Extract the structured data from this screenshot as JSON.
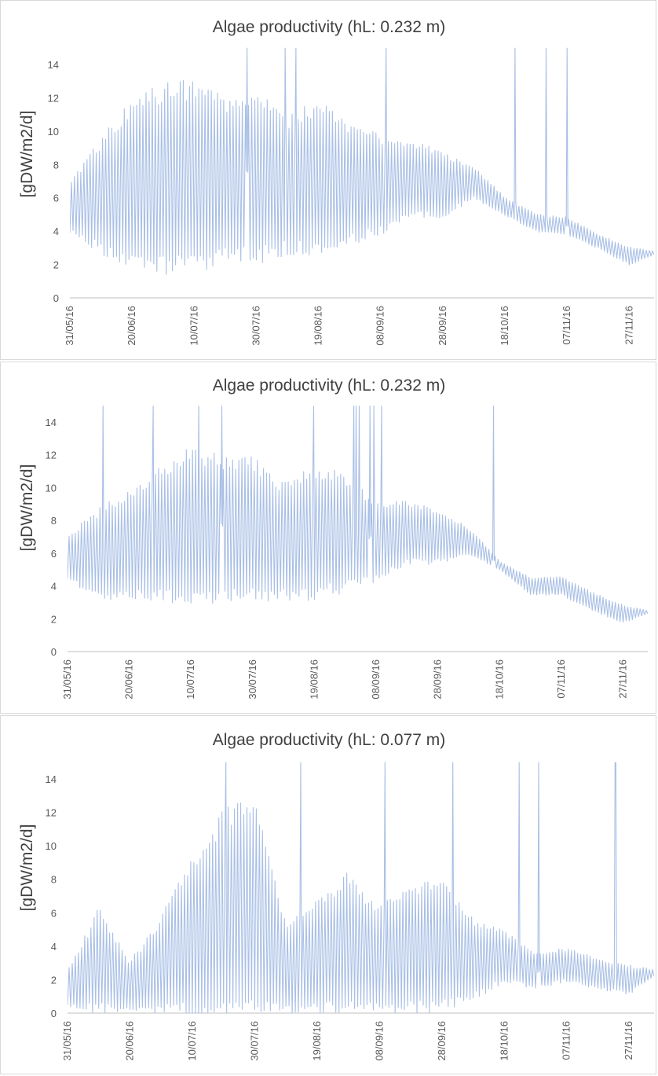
{
  "figure": {
    "line_color": "#a9bfe5",
    "axis_color": "#bfbfbf",
    "text_color": "#595959"
  },
  "chart_data": [
    {
      "type": "line",
      "title": "Algae productivity (hL: 0.232 m)",
      "xlabel": "",
      "ylabel": "[gDW/m2/d]",
      "ylim": [
        0,
        15
      ],
      "yticks": [
        "0",
        "2",
        "4",
        "6",
        "8",
        "10",
        "12",
        "14"
      ],
      "xticks": [
        "31/05/16",
        "20/06/16",
        "10/07/16",
        "30/07/16",
        "19/08/16",
        "08/09/16",
        "28/09/16",
        "18/10/16",
        "07/11/16",
        "27/11/16"
      ],
      "x_range": [
        "2016-05-31",
        "2016-12-05"
      ],
      "grid": false,
      "legend": "none",
      "envelope_every_10_days": {
        "x": [
          "31/05/16",
          "10/06/16",
          "20/06/16",
          "30/06/16",
          "10/07/16",
          "20/07/16",
          "30/07/16",
          "09/08/16",
          "19/08/16",
          "29/08/16",
          "08/09/16",
          "18/09/16",
          "28/09/16",
          "08/10/16",
          "18/10/16",
          "28/10/16",
          "07/11/16",
          "17/11/16",
          "27/11/16",
          "05/12/16"
        ],
        "upper": [
          7.0,
          9.2,
          11.5,
          12.3,
          12.5,
          11.5,
          12.0,
          10.5,
          11.5,
          10.0,
          9.5,
          9.3,
          8.5,
          7.8,
          6.0,
          5.0,
          4.8,
          3.8,
          3.0,
          2.8
        ],
        "lower": [
          4.0,
          3.0,
          2.0,
          2.0,
          2.0,
          2.5,
          2.5,
          3.0,
          3.0,
          3.5,
          4.0,
          5.0,
          5.0,
          6.0,
          5.0,
          4.0,
          3.8,
          3.0,
          2.0,
          2.6
        ]
      }
    },
    {
      "type": "line",
      "title": "Algae productivity (hL: 0.232 m)",
      "xlabel": "",
      "ylabel": "[gDW/m2/d]",
      "ylim": [
        0,
        15
      ],
      "yticks": [
        "0",
        "2",
        "4",
        "6",
        "8",
        "10",
        "12",
        "14"
      ],
      "xticks": [
        "31/05/16",
        "20/06/16",
        "10/07/16",
        "30/07/16",
        "19/08/16",
        "08/09/16",
        "28/09/16",
        "18/10/16",
        "07/11/16",
        "27/11/16"
      ],
      "x_range": [
        "2016-05-31",
        "2016-12-05"
      ],
      "grid": false,
      "legend": "none",
      "envelope_every_10_days": {
        "x": [
          "31/05/16",
          "10/06/16",
          "20/06/16",
          "30/06/16",
          "10/07/16",
          "20/07/16",
          "30/07/16",
          "09/08/16",
          "19/08/16",
          "29/08/16",
          "08/09/16",
          "18/09/16",
          "28/09/16",
          "08/10/16",
          "18/10/16",
          "28/10/16",
          "07/11/16",
          "17/11/16",
          "27/11/16",
          "05/12/16"
        ],
        "upper": [
          7.0,
          8.5,
          9.5,
          11.0,
          12.0,
          11.5,
          11.5,
          10.0,
          11.0,
          10.5,
          9.0,
          9.0,
          8.5,
          7.5,
          5.5,
          4.5,
          4.5,
          3.6,
          2.8,
          2.5
        ],
        "lower": [
          4.5,
          3.5,
          3.5,
          3.5,
          3.0,
          3.5,
          3.5,
          3.5,
          3.5,
          4.0,
          4.5,
          5.5,
          5.5,
          6.0,
          5.0,
          3.5,
          3.5,
          2.5,
          1.8,
          2.3
        ]
      }
    },
    {
      "type": "line",
      "title": "Algae productivity (hL: 0.077 m)",
      "xlabel": "",
      "ylabel": "[gDW/m2/d]",
      "ylim": [
        0,
        15
      ],
      "yticks": [
        "0",
        "2",
        "4",
        "6",
        "8",
        "10",
        "12",
        "14"
      ],
      "xticks": [
        "31/05/16",
        "20/06/16",
        "10/07/16",
        "30/07/16",
        "19/08/16",
        "08/09/16",
        "28/09/16",
        "18/10/16",
        "07/11/16",
        "27/11/16"
      ],
      "x_range": [
        "2016-05-31",
        "2016-12-05"
      ],
      "grid": false,
      "legend": "none",
      "envelope_every_10_days": {
        "x": [
          "31/05/16",
          "10/06/16",
          "20/06/16",
          "30/06/16",
          "10/07/16",
          "20/07/16",
          "30/07/16",
          "09/08/16",
          "19/08/16",
          "29/08/16",
          "08/09/16",
          "18/09/16",
          "28/09/16",
          "08/10/16",
          "18/10/16",
          "28/10/16",
          "07/11/16",
          "17/11/16",
          "27/11/16",
          "05/12/16"
        ],
        "upper": [
          2.5,
          6.0,
          3.0,
          5.5,
          9.0,
          11.5,
          12.5,
          5.0,
          6.5,
          8.0,
          6.0,
          7.5,
          7.5,
          5.5,
          4.8,
          3.5,
          3.8,
          3.2,
          2.8,
          2.6
        ],
        "lower": [
          0.5,
          0.3,
          0.2,
          0.2,
          0.2,
          0.2,
          0.3,
          0.3,
          0.3,
          0.3,
          0.3,
          0.3,
          0.5,
          1.0,
          2.0,
          1.5,
          2.0,
          1.5,
          1.2,
          2.2
        ]
      }
    }
  ]
}
